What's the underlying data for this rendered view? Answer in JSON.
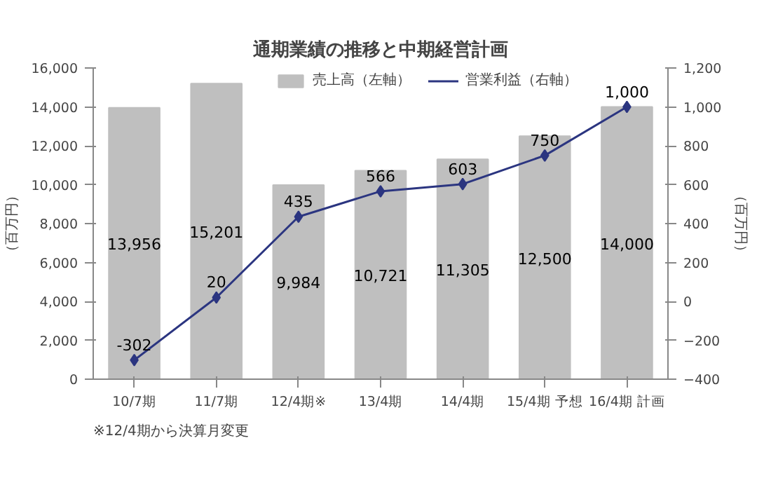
{
  "chart_data": {
    "type": "bar",
    "title": "通期業績の推移と中期経営計画",
    "categories": [
      "10/7期",
      "11/7期",
      "12/4期※",
      "13/4期",
      "14/4期",
      "15/4期\n予想",
      "16/4期\n計画"
    ],
    "series": [
      {
        "name": "売上高（左軸）",
        "color": "#bfbfbf",
        "values": [
          13956,
          15201,
          9984,
          10721,
          11305,
          12500,
          14000
        ],
        "value_labels": [
          "13,956",
          "15,201",
          "9,984",
          "10,721",
          "11,305",
          "12,500",
          "14,000"
        ]
      },
      {
        "name": "営業利益（右軸）",
        "type": "line",
        "axis": "y2",
        "color": "#2b3580",
        "marker": "diamond",
        "values": [
          -302,
          20,
          435,
          566,
          603,
          750,
          1000
        ],
        "value_labels": [
          "-302",
          "20",
          "435",
          "566",
          "603",
          "750",
          "1,000"
        ]
      }
    ],
    "ylim": [
      0,
      16000
    ],
    "yticks": [
      0,
      {
        "value": 2000,
        "label": "2,000"
      },
      {
        "value": 4000,
        "label": "4,000"
      },
      {
        "value": 6000,
        "label": "6,000"
      },
      {
        "value": 8000,
        "label": "8,000"
      },
      {
        "value": 10000,
        "label": "10,000"
      },
      {
        "value": 12000,
        "label": "12,000"
      },
      {
        "value": 14000,
        "label": "14,000"
      },
      {
        "value": 16000,
        "label": "16,000"
      }
    ],
    "y2lim": [
      -400,
      1200
    ],
    "y2ticks": [
      -400,
      -200,
      0,
      200,
      400,
      600,
      800,
      {
        "value": 1000,
        "label": "1,000"
      },
      {
        "value": 1200,
        "label": "1,200"
      }
    ],
    "ylabel": "（百万円）",
    "y2label": "（百万円）",
    "legend": "top",
    "annotations": [
      "※12/4期から決算月変更"
    ]
  }
}
